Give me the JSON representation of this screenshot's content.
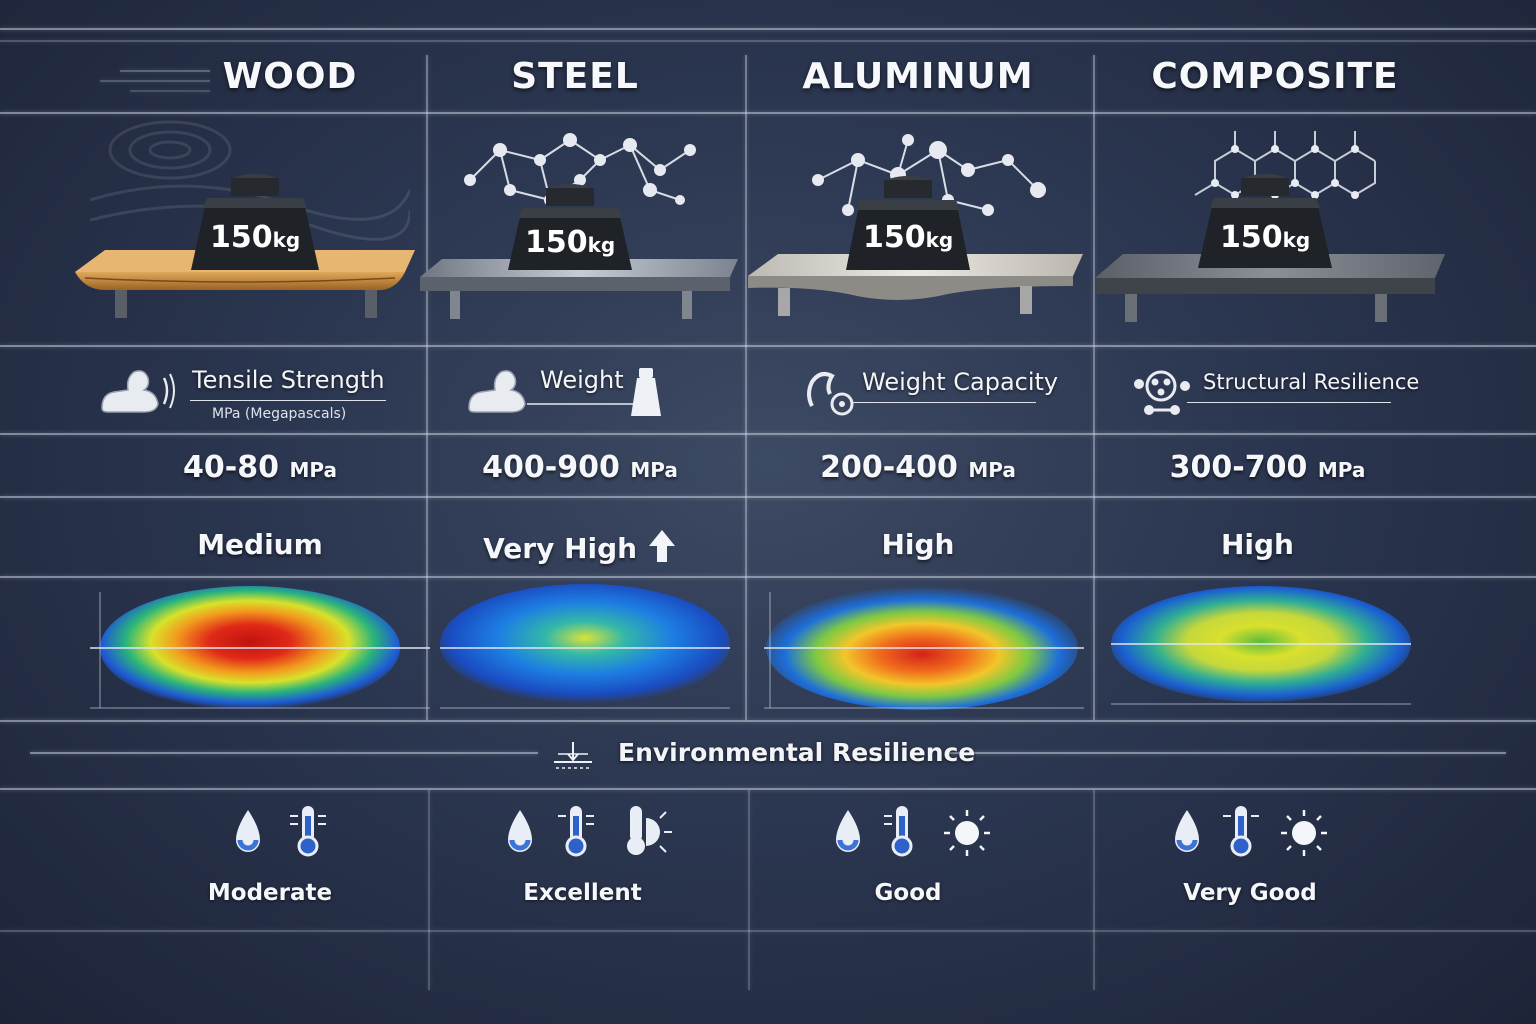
{
  "materials": [
    {
      "name": "WOOD",
      "weight": "150",
      "weight_unit": "kg",
      "metric_label": "Tensile Strength",
      "metric_sub": "MPa (Megapascals)",
      "metric_icon": "flexed-arm-icon",
      "strength_value": "40-80",
      "strength_unit": "MPa",
      "rating": "Medium",
      "heatmap_peak": "red",
      "env_icons": [
        "water-drop-icon",
        "thermometer-icon"
      ],
      "env_rating": "Moderate",
      "plank_color": "#c58a3e"
    },
    {
      "name": "STEEL",
      "weight": "150",
      "weight_unit": "kg",
      "metric_label": "Weight",
      "metric_icon": "flexed-arm-weight-icon",
      "strength_value": "400-900",
      "strength_unit": "MPa",
      "rating": "Very High",
      "rating_icon": "arrow-up-icon",
      "heatmap_peak": "blue",
      "env_icons": [
        "water-drop-icon",
        "thermometer-icon",
        "thermometer-sun-icon"
      ],
      "env_rating": "Excellent",
      "plank_color": "#9aa2ad"
    },
    {
      "name": "ALUMINUM",
      "weight": "150",
      "weight_unit": "kg",
      "metric_label": "Weight Capacity",
      "metric_icon": "arm-gauge-icon",
      "strength_value": "200-400",
      "strength_unit": "MPa",
      "rating": "High",
      "heatmap_peak": "orange",
      "env_icons": [
        "water-drop-icon",
        "thermometer-icon",
        "sun-icon"
      ],
      "env_rating": "Good",
      "plank_color": "#d4d2cc"
    },
    {
      "name": "COMPOSITE",
      "weight": "150",
      "weight_unit": "kg",
      "metric_label": "Structural Resilience",
      "metric_icon": "molecule-cluster-icon",
      "strength_value": "300-700",
      "strength_unit": "MPa",
      "rating": "High",
      "heatmap_peak": "yellow",
      "env_icons": [
        "water-drop-icon",
        "thermometer-icon",
        "sun-icon"
      ],
      "env_rating": "Very Good",
      "plank_color": "#6e737c"
    }
  ],
  "environment": {
    "title": "Environmental Resilience",
    "icon": "pressure-gauge-icon"
  },
  "colors": {
    "background": "#2b3650",
    "grid": "#cdd7e6",
    "heat_low": "#1e5bd6",
    "heat_mid": "#e8e82a",
    "heat_high": "#d8221c"
  }
}
